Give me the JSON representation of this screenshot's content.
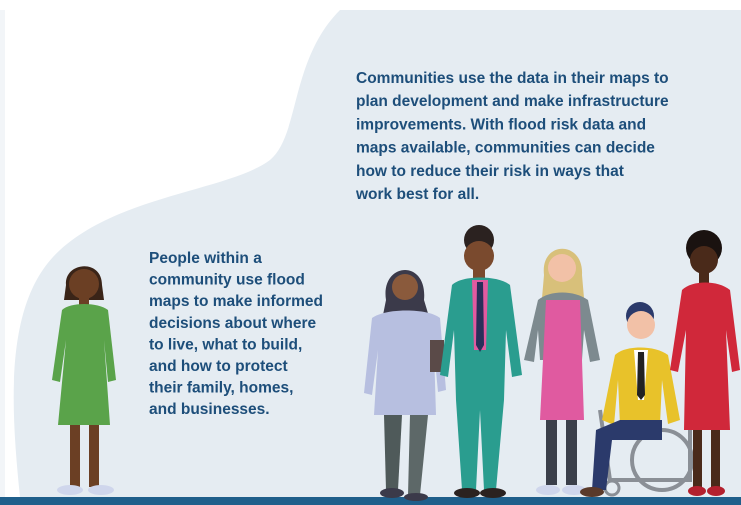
{
  "community_text": {
    "lines": [
      "Communities use the data in their maps to",
      "plan development and make infrastructure",
      "improvements. With flood risk data and",
      "maps available, communities can decide",
      "how to reduce their risk in ways that",
      "work best for all."
    ]
  },
  "people_text": {
    "lines": [
      "People within a",
      "community use flood",
      "maps to make informed",
      "decisions about where",
      "to live, what to build,",
      "and how to protect",
      "their family, homes,",
      "and businesses."
    ]
  }
}
